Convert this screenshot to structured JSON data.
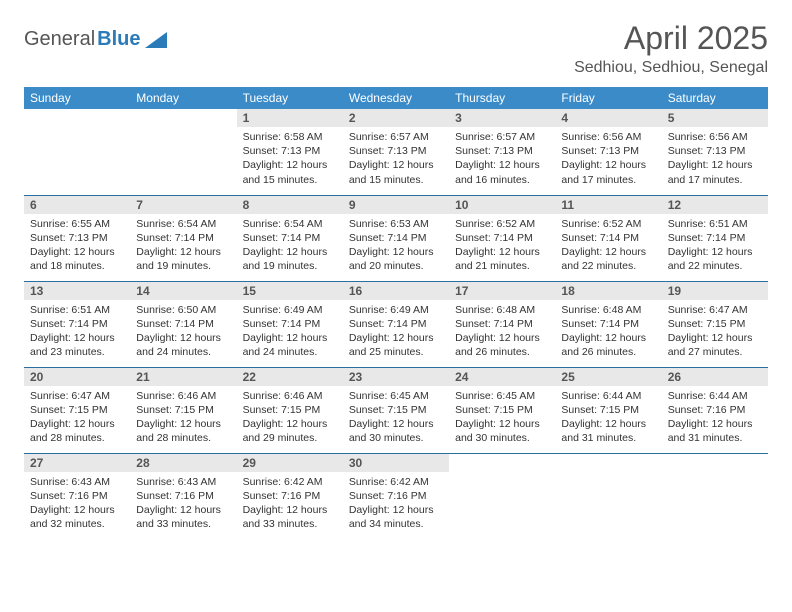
{
  "logo": {
    "word1": "General",
    "word2": "Blue"
  },
  "title": "April 2025",
  "location": "Sedhiou, Sedhiou, Senegal",
  "colors": {
    "header_bg": "#3b8bc9",
    "header_text": "#ffffff",
    "daynum_bg": "#e8e8e8",
    "row_border": "#2b6fa0",
    "title_color": "#555555",
    "body_text": "#333333",
    "logo_accent": "#2b7bb9"
  },
  "weekdays": [
    "Sunday",
    "Monday",
    "Tuesday",
    "Wednesday",
    "Thursday",
    "Friday",
    "Saturday"
  ],
  "first_weekday_index": 2,
  "days": [
    {
      "n": 1,
      "sunrise": "6:58 AM",
      "sunset": "7:13 PM",
      "dl_h": 12,
      "dl_m": 15
    },
    {
      "n": 2,
      "sunrise": "6:57 AM",
      "sunset": "7:13 PM",
      "dl_h": 12,
      "dl_m": 15
    },
    {
      "n": 3,
      "sunrise": "6:57 AM",
      "sunset": "7:13 PM",
      "dl_h": 12,
      "dl_m": 16
    },
    {
      "n": 4,
      "sunrise": "6:56 AM",
      "sunset": "7:13 PM",
      "dl_h": 12,
      "dl_m": 17
    },
    {
      "n": 5,
      "sunrise": "6:56 AM",
      "sunset": "7:13 PM",
      "dl_h": 12,
      "dl_m": 17
    },
    {
      "n": 6,
      "sunrise": "6:55 AM",
      "sunset": "7:13 PM",
      "dl_h": 12,
      "dl_m": 18
    },
    {
      "n": 7,
      "sunrise": "6:54 AM",
      "sunset": "7:14 PM",
      "dl_h": 12,
      "dl_m": 19
    },
    {
      "n": 8,
      "sunrise": "6:54 AM",
      "sunset": "7:14 PM",
      "dl_h": 12,
      "dl_m": 19
    },
    {
      "n": 9,
      "sunrise": "6:53 AM",
      "sunset": "7:14 PM",
      "dl_h": 12,
      "dl_m": 20
    },
    {
      "n": 10,
      "sunrise": "6:52 AM",
      "sunset": "7:14 PM",
      "dl_h": 12,
      "dl_m": 21
    },
    {
      "n": 11,
      "sunrise": "6:52 AM",
      "sunset": "7:14 PM",
      "dl_h": 12,
      "dl_m": 22
    },
    {
      "n": 12,
      "sunrise": "6:51 AM",
      "sunset": "7:14 PM",
      "dl_h": 12,
      "dl_m": 22
    },
    {
      "n": 13,
      "sunrise": "6:51 AM",
      "sunset": "7:14 PM",
      "dl_h": 12,
      "dl_m": 23
    },
    {
      "n": 14,
      "sunrise": "6:50 AM",
      "sunset": "7:14 PM",
      "dl_h": 12,
      "dl_m": 24
    },
    {
      "n": 15,
      "sunrise": "6:49 AM",
      "sunset": "7:14 PM",
      "dl_h": 12,
      "dl_m": 24
    },
    {
      "n": 16,
      "sunrise": "6:49 AM",
      "sunset": "7:14 PM",
      "dl_h": 12,
      "dl_m": 25
    },
    {
      "n": 17,
      "sunrise": "6:48 AM",
      "sunset": "7:14 PM",
      "dl_h": 12,
      "dl_m": 26
    },
    {
      "n": 18,
      "sunrise": "6:48 AM",
      "sunset": "7:14 PM",
      "dl_h": 12,
      "dl_m": 26
    },
    {
      "n": 19,
      "sunrise": "6:47 AM",
      "sunset": "7:15 PM",
      "dl_h": 12,
      "dl_m": 27
    },
    {
      "n": 20,
      "sunrise": "6:47 AM",
      "sunset": "7:15 PM",
      "dl_h": 12,
      "dl_m": 28
    },
    {
      "n": 21,
      "sunrise": "6:46 AM",
      "sunset": "7:15 PM",
      "dl_h": 12,
      "dl_m": 28
    },
    {
      "n": 22,
      "sunrise": "6:46 AM",
      "sunset": "7:15 PM",
      "dl_h": 12,
      "dl_m": 29
    },
    {
      "n": 23,
      "sunrise": "6:45 AM",
      "sunset": "7:15 PM",
      "dl_h": 12,
      "dl_m": 30
    },
    {
      "n": 24,
      "sunrise": "6:45 AM",
      "sunset": "7:15 PM",
      "dl_h": 12,
      "dl_m": 30
    },
    {
      "n": 25,
      "sunrise": "6:44 AM",
      "sunset": "7:15 PM",
      "dl_h": 12,
      "dl_m": 31
    },
    {
      "n": 26,
      "sunrise": "6:44 AM",
      "sunset": "7:16 PM",
      "dl_h": 12,
      "dl_m": 31
    },
    {
      "n": 27,
      "sunrise": "6:43 AM",
      "sunset": "7:16 PM",
      "dl_h": 12,
      "dl_m": 32
    },
    {
      "n": 28,
      "sunrise": "6:43 AM",
      "sunset": "7:16 PM",
      "dl_h": 12,
      "dl_m": 33
    },
    {
      "n": 29,
      "sunrise": "6:42 AM",
      "sunset": "7:16 PM",
      "dl_h": 12,
      "dl_m": 33
    },
    {
      "n": 30,
      "sunrise": "6:42 AM",
      "sunset": "7:16 PM",
      "dl_h": 12,
      "dl_m": 34
    }
  ],
  "labels": {
    "sunrise": "Sunrise:",
    "sunset": "Sunset:",
    "daylight_prefix": "Daylight:",
    "hours_word": "hours",
    "and_word": "and",
    "minutes_word": "minutes."
  }
}
